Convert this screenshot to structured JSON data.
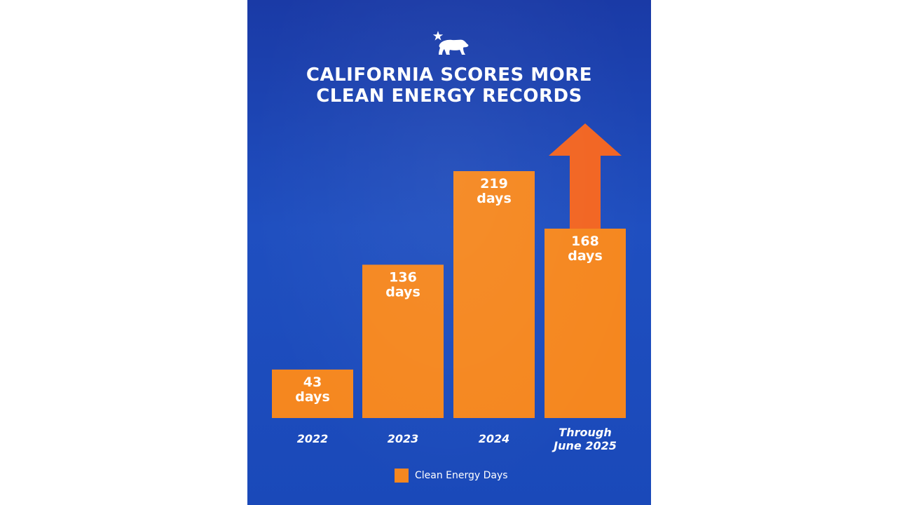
{
  "title_lines": [
    "CALIFORNIA SCORES MORE",
    "CLEAN ENERGY RECORDS"
  ],
  "logo": {
    "icon": "california-bear-star-icon"
  },
  "colors": {
    "background": "#1f4fc0",
    "bar": "#f5871f",
    "arrow": "#f26522",
    "text": "#ffffff"
  },
  "legend": {
    "label": "Clean Energy Days"
  },
  "chart_data": {
    "type": "bar",
    "title": "CALIFORNIA SCORES MORE CLEAN ENERGY RECORDS",
    "categories": [
      [
        "2022"
      ],
      [
        "2023"
      ],
      [
        "2024"
      ],
      [
        "Through",
        "June 2025"
      ]
    ],
    "series": [
      {
        "name": "Clean Energy Days",
        "values": [
          43,
          136,
          219,
          168
        ]
      }
    ],
    "data_labels": [
      [
        "43",
        "days"
      ],
      [
        "136",
        "days"
      ],
      [
        "219",
        "days"
      ],
      [
        "168",
        "days"
      ]
    ],
    "ylim": [
      0,
      219
    ],
    "grid": false,
    "legend_position": "bottom",
    "annotation": "upward-arrow-above-last-bar"
  }
}
